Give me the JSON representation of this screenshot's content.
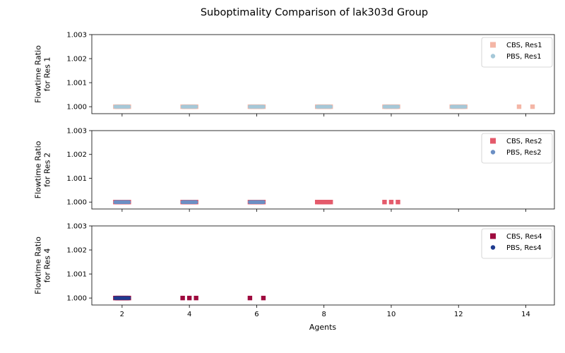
{
  "chart_data": {
    "title": "Suboptimality Comparison of lak303d Group",
    "xlabel": "Agents",
    "xlim": [
      1.1,
      14.85
    ],
    "xticks": [
      2,
      4,
      6,
      8,
      10,
      12,
      14
    ],
    "panels": [
      {
        "type": "scatter",
        "ylabel": "Flowtime Ratio\nfor Res 1",
        "ylim": [
          0.99971,
          1.003
        ],
        "yticks": [
          "1.000",
          "1.001",
          "1.002",
          "1.003"
        ],
        "legend_position": "top-right",
        "series": [
          {
            "name": "CBS, Res1",
            "marker": "square",
            "color": "#f4b6a6",
            "x": [
              1.8,
              1.85,
              1.9,
              1.95,
              2.0,
              2.05,
              2.1,
              2.15,
              2.2,
              3.8,
              3.85,
              3.9,
              3.95,
              4.0,
              4.05,
              4.1,
              4.15,
              4.2,
              5.8,
              5.85,
              5.9,
              5.95,
              6.0,
              6.05,
              6.1,
              6.15,
              6.2,
              7.8,
              7.85,
              7.9,
              7.95,
              8.0,
              8.05,
              8.1,
              8.15,
              8.2,
              9.8,
              9.85,
              9.9,
              9.95,
              10.0,
              10.05,
              10.1,
              10.15,
              10.2,
              11.8,
              11.85,
              11.9,
              11.95,
              12.0,
              12.05,
              12.1,
              12.15,
              12.2,
              13.8,
              14.2
            ],
            "y": [
              1.0,
              1.0,
              1.0,
              1.0,
              1.0,
              1.0,
              1.0,
              1.0,
              1.0,
              1.0,
              1.0,
              1.0,
              1.0,
              1.0,
              1.0,
              1.0,
              1.0,
              1.0,
              1.0,
              1.0,
              1.0,
              1.0,
              1.0,
              1.0,
              1.0,
              1.0,
              1.0,
              1.0,
              1.0,
              1.0,
              1.0,
              1.0,
              1.0,
              1.0,
              1.0,
              1.0,
              1.0,
              1.0,
              1.0,
              1.0,
              1.0,
              1.0,
              1.0,
              1.0,
              1.0,
              1.0,
              1.0,
              1.0,
              1.0,
              1.0,
              1.0,
              1.0,
              1.0,
              1.0,
              1.0,
              1.0
            ]
          },
          {
            "name": "PBS, Res1",
            "marker": "circle",
            "color": "#a5c8d8",
            "x": [
              1.8,
              1.85,
              1.9,
              1.95,
              2.0,
              2.05,
              2.1,
              2.15,
              2.2,
              3.8,
              3.85,
              3.9,
              3.95,
              4.0,
              4.05,
              4.1,
              4.15,
              4.2,
              5.8,
              5.85,
              5.9,
              5.95,
              6.0,
              6.05,
              6.1,
              6.15,
              6.2,
              7.8,
              7.85,
              7.9,
              7.95,
              8.0,
              8.05,
              8.1,
              8.15,
              8.2,
              9.8,
              9.85,
              9.9,
              9.95,
              10.0,
              10.05,
              10.1,
              10.15,
              10.2,
              11.8,
              11.85,
              11.9,
              11.95,
              12.0,
              12.05,
              12.1,
              12.15,
              12.2
            ],
            "y": [
              1.0,
              1.0,
              1.0,
              1.0,
              1.0,
              1.0,
              1.0,
              1.0,
              1.0,
              1.0,
              1.0,
              1.0,
              1.0,
              1.0,
              1.0,
              1.0,
              1.0,
              1.0,
              1.0,
              1.0,
              1.0,
              1.0,
              1.0,
              1.0,
              1.0,
              1.0,
              1.0,
              1.0,
              1.0,
              1.0,
              1.0,
              1.0,
              1.0,
              1.0,
              1.0,
              1.0,
              1.0,
              1.0,
              1.0,
              1.0,
              1.0,
              1.0,
              1.0,
              1.0,
              1.0,
              1.0,
              1.0,
              1.0,
              1.0,
              1.0,
              1.0,
              1.0,
              1.0,
              1.0
            ]
          }
        ]
      },
      {
        "type": "scatter",
        "ylabel": "Flowtime Ratio\nfor Res 2",
        "ylim": [
          0.99971,
          1.003
        ],
        "yticks": [
          "1.000",
          "1.001",
          "1.002",
          "1.003"
        ],
        "legend_position": "top-right",
        "series": [
          {
            "name": "CBS, Res2",
            "marker": "square",
            "color": "#e45a6b",
            "x": [
              1.8,
              1.85,
              1.9,
              1.95,
              2.0,
              2.05,
              2.1,
              2.15,
              2.2,
              3.8,
              3.85,
              3.9,
              3.95,
              4.0,
              4.05,
              4.1,
              4.15,
              4.2,
              5.8,
              5.85,
              5.9,
              5.95,
              6.0,
              6.05,
              6.1,
              6.15,
              6.2,
              7.8,
              7.85,
              7.9,
              7.95,
              8.0,
              8.05,
              8.1,
              8.15,
              8.2,
              9.8,
              10.0,
              10.2
            ],
            "y": [
              1.0,
              1.0,
              1.0,
              1.0,
              1.0,
              1.0,
              1.0,
              1.0,
              1.0,
              1.0,
              1.0,
              1.0,
              1.0,
              1.0,
              1.0,
              1.0,
              1.0,
              1.0,
              1.0,
              1.0,
              1.0,
              1.0,
              1.0,
              1.0,
              1.0,
              1.0,
              1.0,
              1.0,
              1.0,
              1.0,
              1.0,
              1.0,
              1.0,
              1.0,
              1.0,
              1.0,
              1.0,
              1.0,
              1.0
            ]
          },
          {
            "name": "PBS, Res2",
            "marker": "circle",
            "color": "#6b8fc4",
            "x": [
              1.8,
              1.85,
              1.9,
              1.95,
              2.0,
              2.05,
              2.1,
              2.15,
              2.2,
              3.8,
              3.85,
              3.9,
              3.95,
              4.0,
              4.05,
              4.1,
              4.15,
              4.2,
              5.8,
              5.85,
              5.9,
              5.95,
              6.0,
              6.05,
              6.1,
              6.15,
              6.2
            ],
            "y": [
              1.0,
              1.0,
              1.0,
              1.0,
              1.0,
              1.0,
              1.0,
              1.0,
              1.0,
              1.0,
              1.0,
              1.0,
              1.0,
              1.0,
              1.0,
              1.0,
              1.0,
              1.0,
              1.0,
              1.0,
              1.0,
              1.0,
              1.0,
              1.0,
              1.0,
              1.0,
              1.0
            ]
          }
        ]
      },
      {
        "type": "scatter",
        "ylabel": "Flowtime Ratio\nfor Res 4",
        "ylim": [
          0.99971,
          1.003
        ],
        "yticks": [
          "1.000",
          "1.001",
          "1.002",
          "1.003"
        ],
        "legend_position": "top-right",
        "series": [
          {
            "name": "CBS, Res4",
            "marker": "square",
            "color": "#9e0a3e",
            "x": [
              1.8,
              1.85,
              1.9,
              1.95,
              2.0,
              2.05,
              2.1,
              2.15,
              2.2,
              3.8,
              4.0,
              4.2,
              5.8,
              6.2
            ],
            "y": [
              1.0,
              1.0,
              1.0,
              1.0,
              1.0,
              1.0,
              1.0,
              1.0,
              1.0,
              1.0,
              1.0,
              1.0,
              1.0,
              1.0
            ]
          },
          {
            "name": "PBS, Res4",
            "marker": "circle",
            "color": "#1f3b8f",
            "x": [
              1.8,
              1.85,
              1.9,
              1.95,
              2.0,
              2.05,
              2.1,
              2.15,
              2.2
            ],
            "y": [
              1.0,
              1.0,
              1.0,
              1.0,
              1.0,
              1.0,
              1.0,
              1.0,
              1.0
            ]
          }
        ]
      }
    ]
  }
}
